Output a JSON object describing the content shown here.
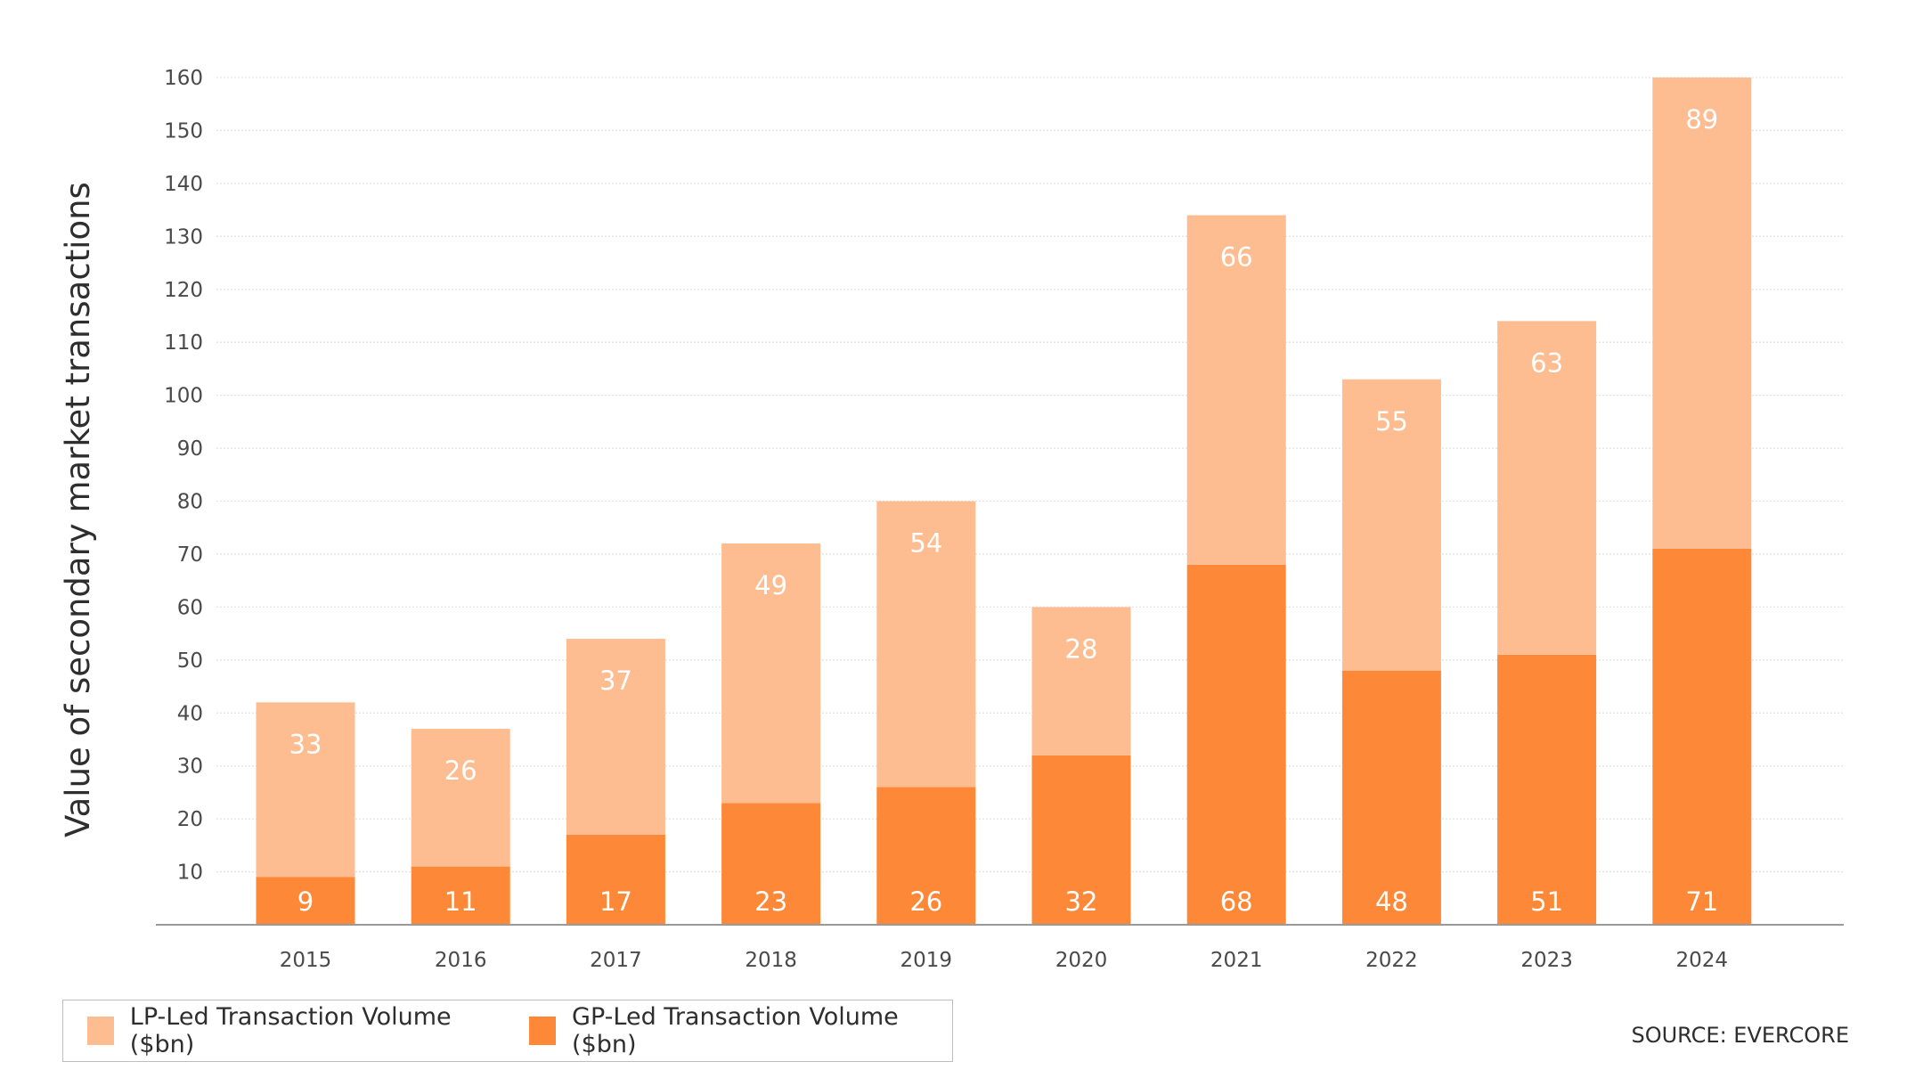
{
  "chart_data": {
    "type": "bar",
    "stacked": true,
    "categories": [
      "2015",
      "2016",
      "2017",
      "2018",
      "2019",
      "2020",
      "2021",
      "2022",
      "2023",
      "2024"
    ],
    "series": [
      {
        "name": "GP-Led Transaction Volume ($bn)",
        "values": [
          9,
          11,
          17,
          23,
          26,
          32,
          68,
          48,
          51,
          71
        ],
        "color": "#fd8837"
      },
      {
        "name": "LP-Led Transaction Volume ($bn)",
        "values": [
          33,
          26,
          37,
          49,
          54,
          28,
          66,
          55,
          63,
          89
        ],
        "color": "#fdbd91"
      }
    ],
    "ylabel": "Value of secondary market transactions",
    "ylim": [
      0,
      160
    ],
    "yticks": [
      10,
      20,
      30,
      40,
      50,
      60,
      70,
      80,
      90,
      100,
      110,
      120,
      130,
      140,
      150,
      160
    ],
    "grid": true,
    "legend_position": "bottom-left"
  },
  "legend": {
    "lp_label": "LP-Led Transaction Volume ($bn)",
    "gp_label": "GP-Led Transaction Volume ($bn)",
    "lp_color": "#fdbd91",
    "gp_color": "#fd8837"
  },
  "source": "SOURCE: EVERCORE"
}
